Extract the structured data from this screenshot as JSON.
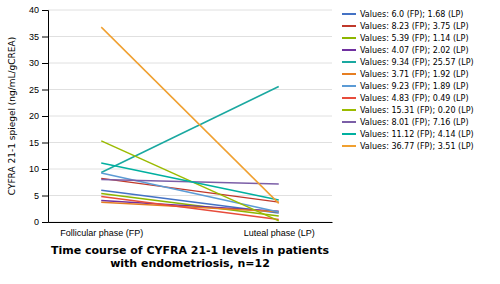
{
  "chart_data": {
    "type": "line",
    "title": "Time course of CYFRA 21-1 levels in patients\nwith endometriosis, n=12",
    "categories": [
      "Follicular phase (FP)",
      "Luteal phase (LP)"
    ],
    "series": [
      {
        "name": "Values: 6.0 (FP); 1.68 (LP)",
        "color": "#4472C4",
        "values": [
          6.0,
          1.68
        ]
      },
      {
        "name": "Values: 8.23 (FP); 3.75 (LP)",
        "color": "#C0392B",
        "values": [
          8.23,
          3.75
        ]
      },
      {
        "name": "Values: 5.39 (FP); 1.14 (LP)",
        "color": "#8DB600",
        "values": [
          5.39,
          1.14
        ]
      },
      {
        "name": "Values: 4.07 (FP); 2.02 (LP)",
        "color": "#7030A0",
        "values": [
          4.07,
          2.02
        ]
      },
      {
        "name": "Values: 9.34 (FP); 25.57 (LP)",
        "color": "#1AA8A0",
        "values": [
          9.34,
          25.57
        ]
      },
      {
        "name": "Values: 3.71 (FP); 1.92 (LP)",
        "color": "#E67E22",
        "values": [
          3.71,
          1.92
        ]
      },
      {
        "name": "Values: 9.23 (FP); 1.89 (LP)",
        "color": "#5B9BD5",
        "values": [
          9.23,
          1.89
        ]
      },
      {
        "name": "Values: 4.83 (FP); 0.49 (LP)",
        "color": "#E74C3C",
        "values": [
          4.83,
          0.49
        ]
      },
      {
        "name": "Values: 15.31 (FP); 0.20 (LP)",
        "color": "#9BBB00",
        "values": [
          15.31,
          0.2
        ]
      },
      {
        "name": "Values: 8.01 (FP); 7.16 (LP)",
        "color": "#7B5EA7",
        "values": [
          8.01,
          7.16
        ]
      },
      {
        "name": "Values: 11.12 (FP); 4.14 (LP)",
        "color": "#00B0A0",
        "values": [
          11.12,
          4.14
        ]
      },
      {
        "name": "Values: 36.77 (FP); 3.51 (LP)",
        "color": "#F0A030",
        "values": [
          36.77,
          3.51
        ]
      }
    ],
    "ylabel": "CYFRA 21-1 spiegel (ng/mL/gCREA)",
    "ylim": [
      0,
      40
    ],
    "yticks": [
      0,
      5,
      10,
      15,
      20,
      25,
      30,
      35,
      40
    ],
    "grid": true,
    "legend": "right"
  }
}
